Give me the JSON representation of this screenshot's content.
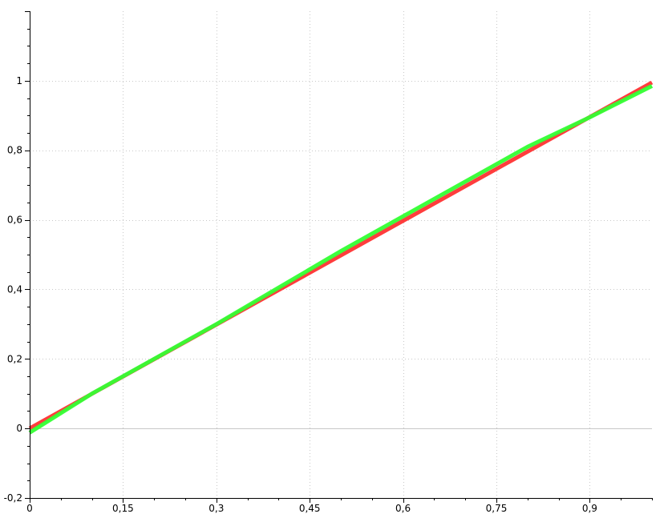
{
  "chart_data": {
    "type": "line",
    "title": "",
    "xlabel": "",
    "ylabel": "",
    "xlim": [
      0,
      1.0
    ],
    "ylim": [
      -0.2,
      1.2
    ],
    "grid": true,
    "x_ticks": [
      {
        "value": 0,
        "label": "0"
      },
      {
        "value": 0.15,
        "label": "0,15"
      },
      {
        "value": 0.3,
        "label": "0,3"
      },
      {
        "value": 0.45,
        "label": "0,45"
      },
      {
        "value": 0.6,
        "label": "0,6"
      },
      {
        "value": 0.75,
        "label": "0,75"
      },
      {
        "value": 0.9,
        "label": "0,9"
      }
    ],
    "y_ticks": [
      {
        "value": -0.2,
        "label": "-0,2"
      },
      {
        "value": 0,
        "label": "0"
      },
      {
        "value": 0.2,
        "label": "0,2"
      },
      {
        "value": 0.4,
        "label": "0,4"
      },
      {
        "value": 0.6,
        "label": "0,6"
      },
      {
        "value": 0.8,
        "label": "0,8"
      },
      {
        "value": 1,
        "label": "1"
      }
    ],
    "series": [
      {
        "color": "#ff3333",
        "x": [
          0,
          1.0
        ],
        "y": [
          0.0,
          0.995
        ]
      },
      {
        "color": "#33ff33",
        "x": [
          0,
          0.1,
          0.2,
          0.3,
          0.4,
          0.5,
          0.6,
          0.7,
          0.8,
          0.9,
          1.0
        ],
        "y": [
          -0.012,
          0.1,
          0.2,
          0.3,
          0.405,
          0.51,
          0.61,
          0.71,
          0.81,
          0.895,
          0.985
        ]
      }
    ]
  }
}
